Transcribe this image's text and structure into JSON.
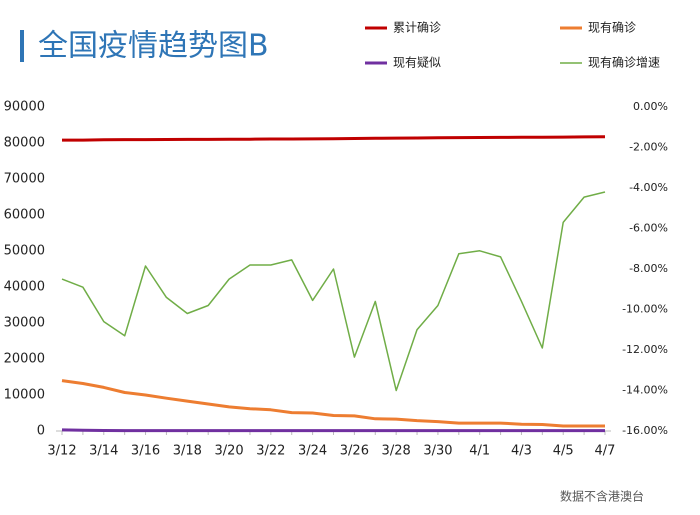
{
  "chart_data": {
    "type": "line",
    "title": "全国疫情趋势图B",
    "footnote": "数据不含港澳台",
    "categories": [
      "3/12",
      null,
      "3/14",
      null,
      "3/16",
      null,
      "3/18",
      null,
      "3/20",
      null,
      "3/22",
      null,
      "3/24",
      null,
      "3/26",
      null,
      "3/28",
      null,
      "3/30",
      null,
      "4/1",
      null,
      "4/3",
      null,
      "4/5",
      null,
      "4/7"
    ],
    "series": [
      {
        "name": "累计确诊",
        "color": "#c00000",
        "axis": "y",
        "values": [
          80800,
          80800,
          80900,
          80950,
          80950,
          80980,
          81000,
          81000,
          81050,
          81050,
          81100,
          81100,
          81150,
          81200,
          81250,
          81300,
          81350,
          81400,
          81450,
          81500,
          81520,
          81550,
          81580,
          81600,
          81650,
          81700,
          81740
        ]
      },
      {
        "name": "现有确诊",
        "color": "#ed7d31",
        "axis": "y",
        "values": [
          14000,
          13200,
          12100,
          10700,
          10000,
          9100,
          8300,
          7500,
          6700,
          6200,
          5900,
          5100,
          5000,
          4300,
          4200,
          3400,
          3300,
          2900,
          2600,
          2200,
          2200,
          2200,
          1900,
          1800,
          1400,
          1400,
          1400
        ]
      },
      {
        "name": "现有疑似",
        "color": "#7030a0",
        "axis": "y",
        "values": [
          300,
          200,
          150,
          120,
          110,
          100,
          100,
          100,
          100,
          100,
          100,
          100,
          100,
          100,
          100,
          100,
          100,
          100,
          100,
          100,
          100,
          100,
          100,
          100,
          100,
          100,
          100
        ]
      },
      {
        "name": "现有确诊增速",
        "color": "#70ad47",
        "axis": "y2",
        "values": [
          -8.5,
          -8.9,
          -10.6,
          -11.3,
          -7.85,
          -9.4,
          -10.2,
          -9.8,
          -8.5,
          -7.8,
          -7.8,
          -7.55,
          -9.55,
          -8.0,
          -12.35,
          -9.6,
          -14.0,
          -11.0,
          -9.8,
          -7.25,
          -7.1,
          -7.4,
          -9.6,
          -11.9,
          -5.7,
          -4.45,
          -4.2
        ]
      }
    ],
    "ylim": [
      0,
      90000
    ],
    "yticks": [
      0,
      10000,
      20000,
      30000,
      40000,
      50000,
      60000,
      70000,
      80000,
      90000
    ],
    "y2lim": [
      -16,
      0
    ],
    "y2ticks": [
      {
        "value": 0,
        "label": "0.00%"
      },
      {
        "value": -2,
        "label": "-2.00%"
      },
      {
        "value": -4,
        "label": "-4.00%"
      },
      {
        "value": -6,
        "label": "-6.00%"
      },
      {
        "value": -8,
        "label": "-8.00%"
      },
      {
        "value": -10,
        "label": "-10.00%"
      },
      {
        "value": -12,
        "label": "-12.00%"
      },
      {
        "value": -14,
        "label": "-14.00%"
      },
      {
        "value": -16,
        "label": "-16.00%"
      }
    ],
    "grid": false
  }
}
